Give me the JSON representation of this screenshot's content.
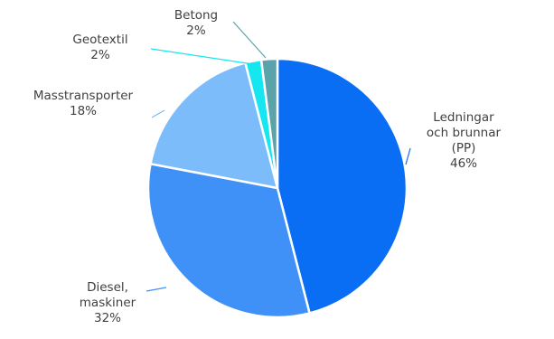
{
  "chart_data": {
    "type": "pie",
    "slices": [
      {
        "label": [
          "Ledningar",
          "och brunnar",
          "(PP)"
        ],
        "pct_text": "46%",
        "value": 46,
        "color": "#0a6ef5"
      },
      {
        "label": [
          "Diesel,",
          "maskiner"
        ],
        "pct_text": "32%",
        "value": 32,
        "color": "#3f91f7"
      },
      {
        "label": [
          "Masstransporter"
        ],
        "pct_text": "18%",
        "value": 18,
        "color": "#7dbcfa"
      },
      {
        "label": [
          "Geotextil"
        ],
        "pct_text": "2%",
        "value": 2,
        "color": "#16e6ef"
      },
      {
        "label": [
          "Betong"
        ],
        "pct_text": "2%",
        "value": 2,
        "color": "#5aa3aa"
      }
    ],
    "legend": "none",
    "direction": "clockwise"
  }
}
